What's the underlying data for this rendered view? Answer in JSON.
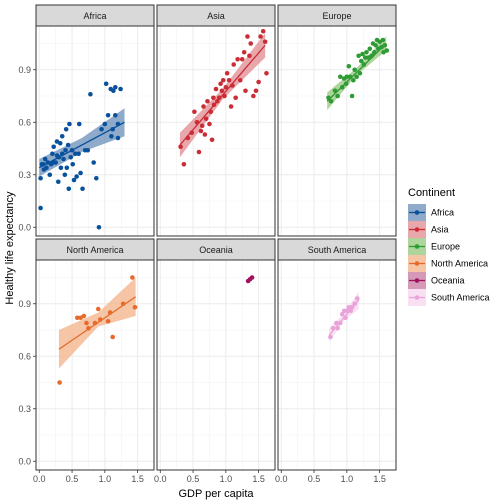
{
  "chart_data": {
    "type": "scatter",
    "xlabel": "GDP per capita",
    "ylabel": "Healthy life expectancy",
    "xlim": [
      -0.05,
      1.75
    ],
    "ylim": [
      -0.05,
      1.15
    ],
    "x_ticks": [
      0.0,
      0.5,
      1.0,
      1.5
    ],
    "x_tick_labels": [
      "0.0",
      "0.5",
      "1.0",
      "1.5"
    ],
    "y_ticks": [
      0.0,
      0.3,
      0.6,
      0.9
    ],
    "y_tick_labels": [
      "0.0",
      "0.3",
      "0.6",
      "0.9"
    ],
    "grid": true,
    "legend": {
      "title": "Continent",
      "position": "right",
      "entries": [
        "Africa",
        "Asia",
        "Europe",
        "North America",
        "Oceania",
        "South America"
      ]
    },
    "series": [
      {
        "name": "Africa",
        "color": "#08519c",
        "fill": "#6a8db8",
        "fit": [
          [
            0.0,
            0.34
          ],
          [
            1.3,
            0.6
          ]
        ],
        "band": [
          [
            0.0,
            0.29,
            0.39
          ],
          [
            0.65,
            0.43,
            0.51
          ],
          [
            1.3,
            0.52,
            0.68
          ]
        ],
        "points": [
          [
            0.02,
            0.11
          ],
          [
            0.02,
            0.28
          ],
          [
            0.04,
            0.36
          ],
          [
            0.06,
            0.36
          ],
          [
            0.07,
            0.33
          ],
          [
            0.09,
            0.39
          ],
          [
            0.11,
            0.34
          ],
          [
            0.13,
            0.37
          ],
          [
            0.16,
            0.3
          ],
          [
            0.18,
            0.36
          ],
          [
            0.2,
            0.42
          ],
          [
            0.22,
            0.37
          ],
          [
            0.22,
            0.46
          ],
          [
            0.25,
            0.37
          ],
          [
            0.27,
            0.41
          ],
          [
            0.27,
            0.49
          ],
          [
            0.29,
            0.26
          ],
          [
            0.3,
            0.4
          ],
          [
            0.32,
            0.48
          ],
          [
            0.33,
            0.34
          ],
          [
            0.35,
            0.42
          ],
          [
            0.35,
            0.52
          ],
          [
            0.37,
            0.39
          ],
          [
            0.39,
            0.3
          ],
          [
            0.4,
            0.44
          ],
          [
            0.41,
            0.56
          ],
          [
            0.42,
            0.34
          ],
          [
            0.44,
            0.47
          ],
          [
            0.45,
            0.22
          ],
          [
            0.46,
            0.59
          ],
          [
            0.48,
            0.4
          ],
          [
            0.5,
            0.44
          ],
          [
            0.51,
            0.36
          ],
          [
            0.53,
            0.27
          ],
          [
            0.55,
            0.42
          ],
          [
            0.57,
            0.29
          ],
          [
            0.6,
            0.42
          ],
          [
            0.61,
            0.59
          ],
          [
            0.63,
            0.31
          ],
          [
            0.66,
            0.22
          ],
          [
            0.7,
            0.44
          ],
          [
            0.74,
            0.44
          ],
          [
            0.78,
            0.76
          ],
          [
            0.83,
            0.37
          ],
          [
            0.87,
            0.28
          ],
          [
            0.91,
            0.0
          ],
          [
            0.95,
            0.56
          ],
          [
            1.0,
            0.59
          ],
          [
            1.02,
            0.82
          ],
          [
            1.05,
            0.64
          ],
          [
            1.09,
            0.79
          ],
          [
            1.12,
            0.56
          ],
          [
            1.13,
            0.78
          ],
          [
            1.16,
            0.8
          ],
          [
            1.2,
            0.59
          ],
          [
            1.24,
            0.79
          ],
          [
            1.2,
            0.51
          ],
          [
            1.16,
            0.64
          ],
          [
            1.1,
            0.52
          ]
        ]
      },
      {
        "name": "Asia",
        "color": "#cb2c35",
        "fill": "#e08a8f",
        "fit": [
          [
            0.3,
            0.47
          ],
          [
            1.6,
            1.04
          ]
        ],
        "band": [
          [
            0.3,
            0.4,
            0.54
          ],
          [
            0.95,
            0.73,
            0.79
          ],
          [
            1.6,
            0.97,
            1.11
          ]
        ],
        "points": [
          [
            0.31,
            0.46
          ],
          [
            0.36,
            0.36
          ],
          [
            0.42,
            0.51
          ],
          [
            0.48,
            0.54
          ],
          [
            0.52,
            0.66
          ],
          [
            0.56,
            0.6
          ],
          [
            0.59,
            0.43
          ],
          [
            0.62,
            0.55
          ],
          [
            0.64,
            0.58
          ],
          [
            0.66,
            0.69
          ],
          [
            0.68,
            0.53
          ],
          [
            0.7,
            0.62
          ],
          [
            0.72,
            0.72
          ],
          [
            0.75,
            0.59
          ],
          [
            0.77,
            0.66
          ],
          [
            0.79,
            0.5
          ],
          [
            0.81,
            0.74
          ],
          [
            0.82,
            0.7
          ],
          [
            0.85,
            0.79
          ],
          [
            0.87,
            0.72
          ],
          [
            0.9,
            0.74
          ],
          [
            0.92,
            0.82
          ],
          [
            0.94,
            0.78
          ],
          [
            0.96,
            0.84
          ],
          [
            0.98,
            0.75
          ],
          [
            1.0,
            0.8
          ],
          [
            1.02,
            0.88
          ],
          [
            1.05,
            0.84
          ],
          [
            1.08,
            0.69
          ],
          [
            1.1,
            0.81
          ],
          [
            1.12,
            0.93
          ],
          [
            1.15,
            0.74
          ],
          [
            1.18,
            0.96
          ],
          [
            1.22,
            0.84
          ],
          [
            1.25,
            0.96
          ],
          [
            1.28,
            1.0
          ],
          [
            1.3,
            0.78
          ],
          [
            1.33,
            1.09
          ],
          [
            1.36,
            0.98
          ],
          [
            1.38,
            1.05
          ],
          [
            1.42,
            0.75
          ],
          [
            1.46,
            0.78
          ],
          [
            1.5,
            0.83
          ],
          [
            1.53,
            1.09
          ],
          [
            1.57,
            1.12
          ],
          [
            1.62,
            0.88
          ],
          [
            1.6,
            1.06
          ]
        ]
      },
      {
        "name": "Europe",
        "color": "#2e9b35",
        "fill": "#93c77a",
        "fit": [
          [
            0.7,
            0.72
          ],
          [
            1.6,
            1.05
          ]
        ],
        "band": [
          [
            0.7,
            0.67,
            0.77
          ],
          [
            1.15,
            0.87,
            0.91
          ],
          [
            1.6,
            1.01,
            1.09
          ]
        ],
        "points": [
          [
            0.72,
            0.74
          ],
          [
            0.76,
            0.72
          ],
          [
            0.82,
            0.78
          ],
          [
            0.86,
            0.75
          ],
          [
            0.9,
            0.86
          ],
          [
            0.93,
            0.8
          ],
          [
            0.96,
            0.85
          ],
          [
            0.99,
            0.82
          ],
          [
            1.0,
            0.86
          ],
          [
            1.03,
            0.92
          ],
          [
            1.05,
            0.86
          ],
          [
            1.08,
            0.75
          ],
          [
            1.1,
            0.84
          ],
          [
            1.12,
            0.9
          ],
          [
            1.15,
            0.86
          ],
          [
            1.18,
            0.98
          ],
          [
            1.2,
            0.88
          ],
          [
            1.22,
            0.95
          ],
          [
            1.24,
            0.99
          ],
          [
            1.26,
            0.93
          ],
          [
            1.28,
            0.97
          ],
          [
            1.3,
            1.0
          ],
          [
            1.33,
            0.97
          ],
          [
            1.35,
            1.02
          ],
          [
            1.38,
            0.98
          ],
          [
            1.4,
            1.05
          ],
          [
            1.42,
            1.0
          ],
          [
            1.44,
            1.04
          ],
          [
            1.46,
            1.07
          ],
          [
            1.48,
            1.02
          ],
          [
            1.5,
            1.06
          ],
          [
            1.53,
            1.03
          ],
          [
            1.55,
            1.07
          ],
          [
            1.58,
            1.04
          ],
          [
            1.61,
            1.01
          ],
          [
            1.56,
            1.0
          ]
        ]
      },
      {
        "name": "North America",
        "color": "#e66a2b",
        "fill": "#f2b287",
        "fit": [
          [
            0.3,
            0.64
          ],
          [
            1.47,
            0.94
          ]
        ],
        "band": [
          [
            0.3,
            0.53,
            0.75
          ],
          [
            0.9,
            0.77,
            0.85
          ],
          [
            1.47,
            0.83,
            1.05
          ]
        ],
        "points": [
          [
            0.31,
            0.45
          ],
          [
            0.58,
            0.82
          ],
          [
            0.63,
            0.82
          ],
          [
            0.68,
            0.83
          ],
          [
            0.72,
            0.79
          ],
          [
            0.75,
            0.76
          ],
          [
            0.85,
            0.79
          ],
          [
            0.9,
            0.87
          ],
          [
            0.93,
            0.81
          ],
          [
            1.05,
            0.8
          ],
          [
            1.08,
            0.85
          ],
          [
            1.12,
            0.71
          ],
          [
            1.28,
            0.9
          ],
          [
            1.42,
            1.05
          ],
          [
            1.46,
            0.88
          ]
        ]
      },
      {
        "name": "Oceania",
        "color": "#a0135e",
        "fill": "#c7789f",
        "fit": [
          [
            1.33,
            1.03
          ],
          [
            1.4,
            1.05
          ]
        ],
        "band": [],
        "points": [
          [
            1.34,
            1.03
          ],
          [
            1.37,
            1.04
          ],
          [
            1.4,
            1.05
          ]
        ]
      },
      {
        "name": "South America",
        "color": "#e9a3d9",
        "fill": "#f5d6ee",
        "fit": [
          [
            0.73,
            0.72
          ],
          [
            1.18,
            0.92
          ]
        ],
        "band": [
          [
            0.73,
            0.68,
            0.76
          ],
          [
            0.95,
            0.8,
            0.84
          ],
          [
            1.18,
            0.87,
            0.97
          ]
        ],
        "points": [
          [
            0.75,
            0.71
          ],
          [
            0.79,
            0.76
          ],
          [
            0.84,
            0.79
          ],
          [
            0.86,
            0.76
          ],
          [
            0.9,
            0.79
          ],
          [
            0.93,
            0.84
          ],
          [
            0.96,
            0.86
          ],
          [
            0.98,
            0.82
          ],
          [
            1.0,
            0.86
          ],
          [
            1.03,
            0.88
          ],
          [
            1.06,
            0.86
          ],
          [
            1.08,
            0.88
          ],
          [
            1.12,
            0.9
          ],
          [
            1.16,
            0.93
          ]
        ]
      }
    ]
  }
}
